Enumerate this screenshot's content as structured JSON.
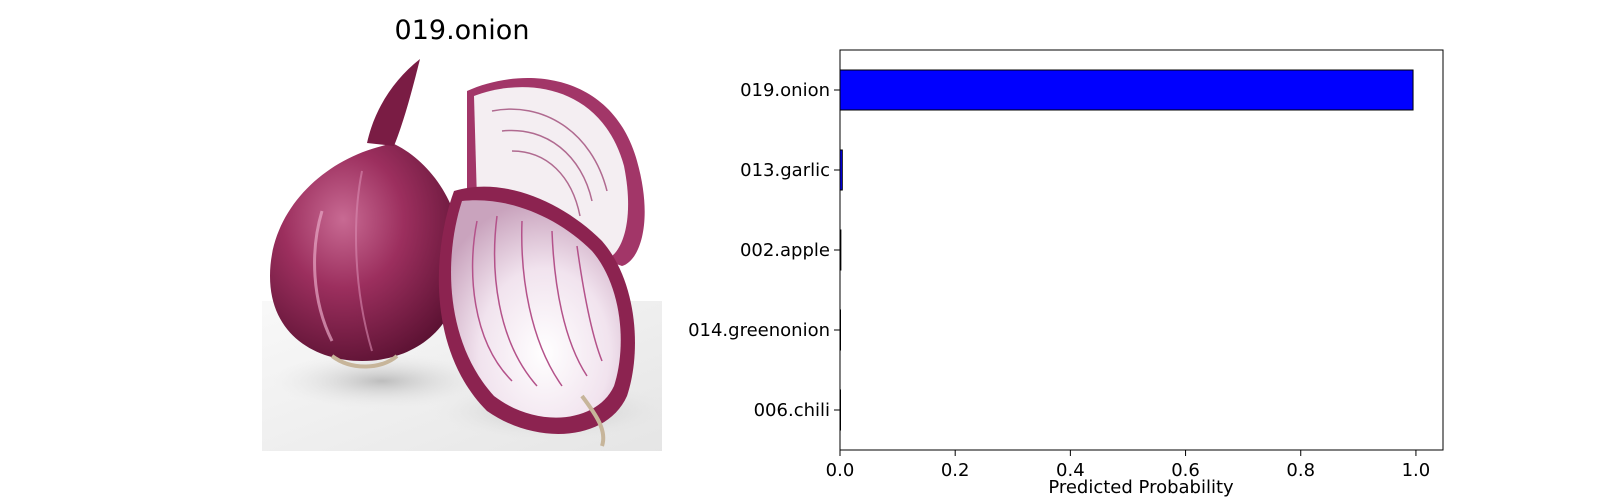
{
  "image_title": "019.onion",
  "chart_data": {
    "type": "bar",
    "orientation": "horizontal",
    "categories": [
      "019.onion",
      "013.garlic",
      "002.apple",
      "014.greenonion",
      "006.chili"
    ],
    "values": [
      0.995,
      0.004,
      0.0015,
      0.0003,
      0.0001
    ],
    "xlabel": "Predicted Probability",
    "ylabel": "",
    "xlim": [
      0,
      1.047
    ],
    "xticks": [
      "0.0",
      "0.2",
      "0.4",
      "0.6",
      "0.8",
      "1.0"
    ],
    "grid": false,
    "bar_color": "#0000ff",
    "edge_color": "#000000"
  }
}
